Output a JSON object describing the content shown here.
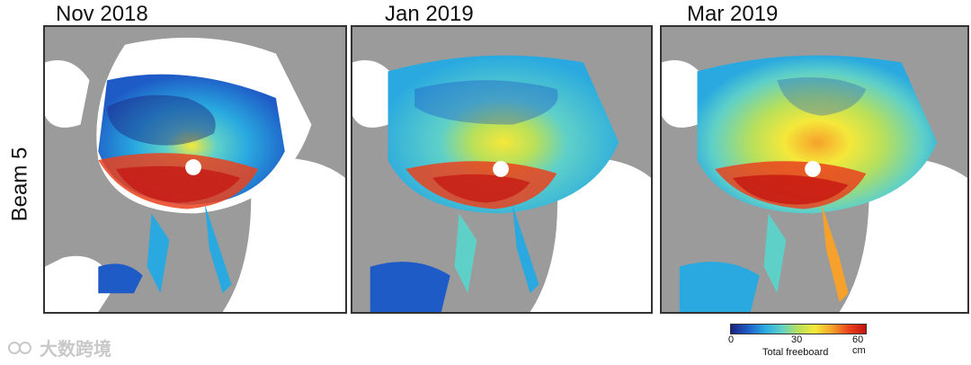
{
  "panels": [
    {
      "title": "Nov 2018"
    },
    {
      "title": "Jan 2019"
    },
    {
      "title": "Mar 2019"
    }
  ],
  "row_label": "Beam 5",
  "colorbar": {
    "title": "Total freeboard",
    "ticks": [
      "0",
      "30",
      "60 cm"
    ],
    "min": 0,
    "max": 60,
    "unit": "cm",
    "colors": [
      "#1a237e",
      "#1e5bc6",
      "#29a9e0",
      "#5fd0c8",
      "#b8e05a",
      "#f5e83a",
      "#f6a12b",
      "#e9421d",
      "#c4120f"
    ]
  },
  "watermark": {
    "text": "大数跨境"
  },
  "colors": {
    "land": "#9b9b9b",
    "ocean": "#ffffff",
    "pole_hole": "#ffffff"
  }
}
